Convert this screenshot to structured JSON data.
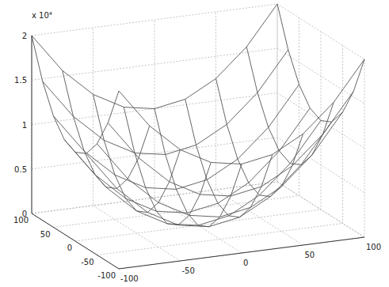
{
  "chart_data": {
    "type": "surface",
    "x": [
      -100,
      -75,
      -50,
      -25,
      0,
      25,
      50,
      75,
      100
    ],
    "y": [
      -100,
      -75,
      -50,
      -25,
      0,
      25,
      50,
      75,
      100
    ],
    "z": [
      [
        20000,
        15625,
        12500,
        10625,
        10000,
        10625,
        12500,
        15625,
        20000
      ],
      [
        15625,
        11250,
        8125,
        6250,
        5625,
        6250,
        8125,
        11250,
        15625
      ],
      [
        12500,
        8125,
        5000,
        3125,
        2500,
        3125,
        5000,
        8125,
        12500
      ],
      [
        10625,
        6250,
        3125,
        1250,
        625,
        1250,
        3125,
        6250,
        10625
      ],
      [
        10000,
        5625,
        2500,
        625,
        0,
        625,
        2500,
        5625,
        10000
      ],
      [
        10625,
        6250,
        3125,
        1250,
        625,
        1250,
        3125,
        6250,
        10625
      ],
      [
        12500,
        8125,
        5000,
        3125,
        2500,
        3125,
        5000,
        8125,
        12500
      ],
      [
        15625,
        11250,
        8125,
        6250,
        5625,
        6250,
        8125,
        11250,
        15625
      ],
      [
        20000,
        15625,
        12500,
        10625,
        10000,
        10625,
        12500,
        15625,
        20000
      ]
    ],
    "xlim": [
      -100,
      100
    ],
    "xticks": [
      -100,
      -50,
      0,
      50,
      100
    ],
    "ylim": [
      -100,
      100
    ],
    "yticks": [
      -100,
      -50,
      0,
      50,
      100
    ],
    "zlim": [
      0,
      20000
    ],
    "zticks": [
      0,
      {
        "value": 5000,
        "label": "0.5"
      },
      {
        "value": 10000,
        "label": "1"
      },
      {
        "value": 15000,
        "label": "1.5"
      },
      {
        "value": 20000,
        "label": "2"
      }
    ],
    "annotations": [
      "x 10⁴"
    ],
    "grid": true,
    "color": "#555555"
  }
}
